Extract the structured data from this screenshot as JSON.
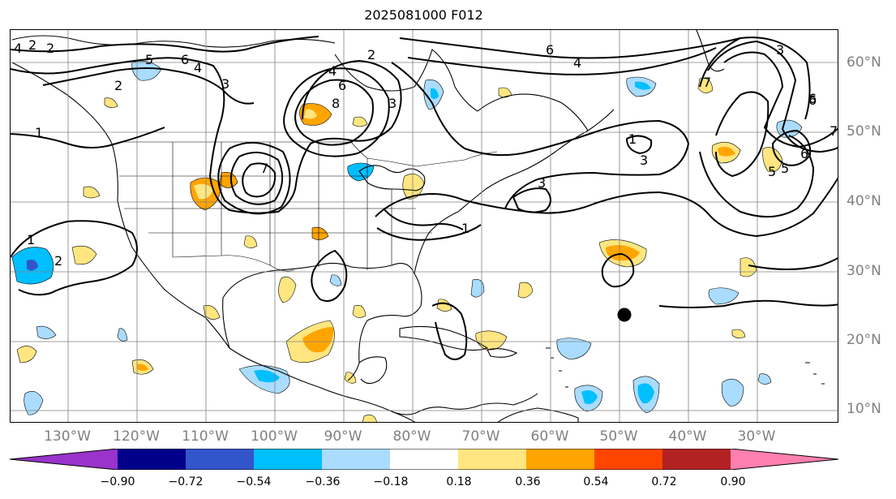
{
  "title": "2025081000 F012",
  "longitude_labels": [
    "130°W",
    "120°W",
    "110°W",
    "100°W",
    "90°W",
    "80°W",
    "70°W",
    "60°W",
    "50°W",
    "40°W",
    "30°W"
  ],
  "latitude_labels": [
    "60°N",
    "50°N",
    "40°N",
    "30°N",
    "20°N",
    "10°N"
  ],
  "contour_labels": [
    "2",
    "2",
    "2",
    "5",
    "6",
    "4",
    "3",
    "4",
    "6",
    "8",
    "6",
    "4",
    "2",
    "4",
    "5",
    "6",
    "3",
    "6",
    "7",
    "1",
    "7",
    "1",
    "2",
    "1",
    "1",
    "3",
    "3",
    "7",
    "6",
    "5",
    "3"
  ],
  "colorbar": {
    "tick_labels": [
      "−0.90",
      "−0.72",
      "−0.54",
      "−0.36",
      "−0.18",
      "0.18",
      "0.36",
      "0.54",
      "0.72",
      "0.90"
    ],
    "colors": [
      "#9933cc",
      "#00008b",
      "#3355cc",
      "#00bfff",
      "#aadcff",
      "#ffffff",
      "#ffe680",
      "#ffa500",
      "#ff4500",
      "#b22222",
      "#ff80b0"
    ]
  },
  "storm_marker": {
    "label": "",
    "color": "#000000"
  }
}
